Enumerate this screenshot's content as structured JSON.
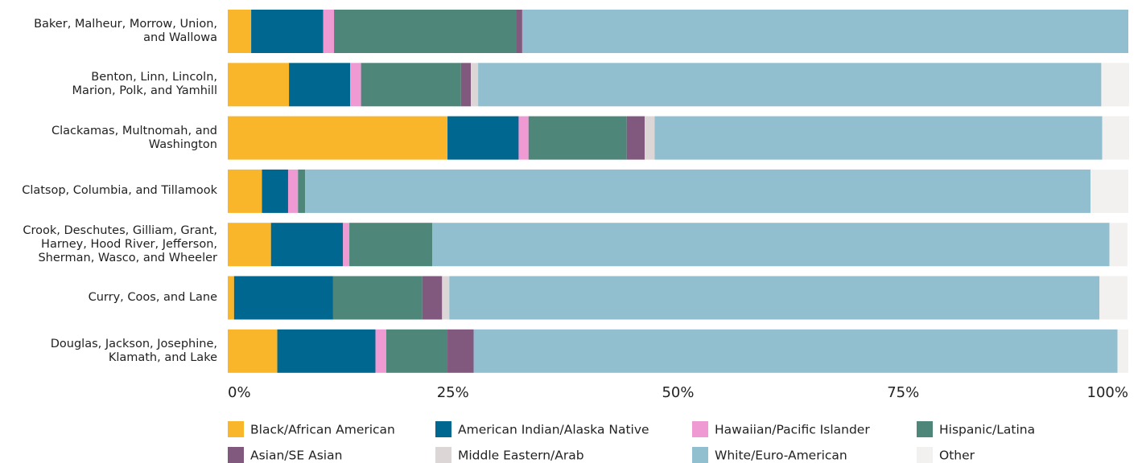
{
  "chart_data": {
    "type": "stacked-bar-horizontal",
    "categories": [
      "Baker, Malheur, Morrow, Union,\nand Wallowa",
      "Benton, Linn, Lincoln,\nMarion, Polk, and Yamhill",
      "Clackamas, Multnomah, and\nWashington",
      "Clatsop, Columbia, and Tillamook",
      "Crook, Deschutes, Gilliam, Grant,\nHarney, Hood River, Jefferson,\nSherman, Wasco, and Wheeler",
      "Curry, Coos, and Lane",
      "Douglas, Jackson, Josephine,\nKlamath, and Lake"
    ],
    "series": [
      {
        "name": "Black/African American",
        "color": "#f9b62b",
        "values": [
          2.6,
          6.8,
          24.4,
          3.8,
          4.8,
          0.7,
          5.5
        ]
      },
      {
        "name": "American Indian/Alaska Native",
        "color": "#006890",
        "values": [
          8.0,
          6.8,
          7.9,
          2.9,
          8.0,
          11.0,
          10.9
        ]
      },
      {
        "name": "Hawaiian/Pacific Islander",
        "color": "#ef9ad3",
        "values": [
          1.2,
          1.2,
          1.1,
          1.1,
          0.7,
          0,
          1.2
        ]
      },
      {
        "name": "Hispanic/Latina",
        "color": "#4e8679",
        "values": [
          20.2,
          11.1,
          10.9,
          0.8,
          9.2,
          9.9,
          6.8
        ]
      },
      {
        "name": "Asian/SE Asian",
        "color": "#82597e",
        "values": [
          0.7,
          1.1,
          2.0,
          0,
          0,
          2.2,
          2.9
        ]
      },
      {
        "name": "Middle Eastern/Arab",
        "color": "#dcd7d6",
        "values": [
          0,
          0.8,
          1.1,
          0,
          0,
          0.8,
          0
        ]
      },
      {
        "name": "White/Euro-American",
        "color": "#92bfcf",
        "values": [
          67.3,
          69.2,
          49.7,
          87.2,
          75.2,
          72.2,
          71.5
        ]
      },
      {
        "name": "Other",
        "color": "#f2f1ef",
        "values": [
          0,
          3.1,
          3.0,
          4.2,
          2.0,
          3.1,
          1.2
        ]
      }
    ],
    "xlim": [
      0,
      100
    ],
    "xticks": [
      {
        "value": 0,
        "label": "0%"
      },
      {
        "value": 25,
        "label": "25%"
      },
      {
        "value": 50,
        "label": "50%"
      },
      {
        "value": 75,
        "label": "75%"
      },
      {
        "value": 100,
        "label": "100%"
      }
    ],
    "grid": false
  }
}
